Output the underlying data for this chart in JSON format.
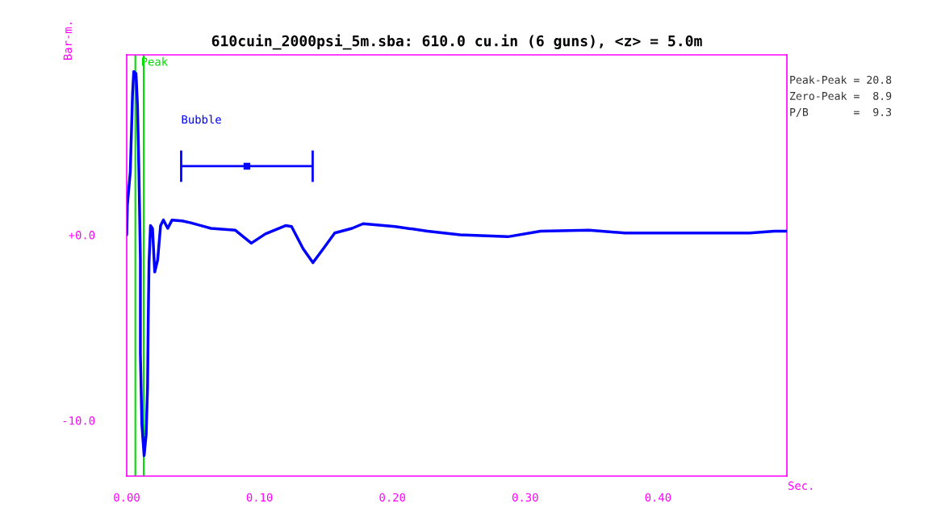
{
  "chart_data": {
    "type": "line",
    "title": "610cuin_2000psi_5m.sba: 610.0 cu.in (6 guns), <z> = 5.0m",
    "xlabel": "Sec.",
    "ylabel": "Bar-m.",
    "xlim": [
      0,
      0.497
    ],
    "ylim": [
      -13.0,
      9.7
    ],
    "xticks": [
      {
        "value": 0,
        "label": "0.00"
      },
      {
        "value": 0.1,
        "label": "0.10"
      },
      {
        "value": 0.2,
        "label": "0.20"
      },
      {
        "value": 0.3,
        "label": "0.30"
      },
      {
        "value": 0.4,
        "label": "0.40"
      }
    ],
    "yticks": [
      {
        "value": 0,
        "label": "+0.0"
      },
      {
        "value": -10,
        "label": "-10.0"
      }
    ],
    "grid": false,
    "legend": false,
    "series": [
      {
        "color": "#0000ff",
        "x": [
          0,
          0.0005,
          0.0027,
          0.0044,
          0.0053,
          0.007,
          0.0081,
          0.0092,
          0.0103,
          0.0103,
          0.0114,
          0.0131,
          0.0146,
          0.0157,
          0.0162,
          0.0168,
          0.0179,
          0.0194,
          0.0211,
          0.0233,
          0.0255,
          0.0276,
          0.0309,
          0.0341,
          0.0417,
          0.0482,
          0.0634,
          0.0818,
          0.0938,
          0.1044,
          0.1196,
          0.1241,
          0.1328,
          0.1402,
          0.148,
          0.1566,
          0.1696,
          0.178,
          0.202,
          0.2265,
          0.251,
          0.287,
          0.3115,
          0.348,
          0.375,
          0.469,
          0.4875,
          0.497
        ],
        "values": [
          0,
          1.6,
          3.4,
          7.6,
          8.8,
          8.7,
          7.0,
          3.4,
          -1.35,
          -6.4,
          -10.2,
          -11.9,
          -10.8,
          -8.2,
          -4.6,
          -1.5,
          0.5,
          0.35,
          -2.0,
          -1.35,
          0.5,
          0.8,
          0.35,
          0.8,
          0.75,
          0.65,
          0.35,
          0.25,
          -0.45,
          0.05,
          0.5,
          0.45,
          -0.75,
          -1.5,
          -0.75,
          0.1,
          0.35,
          0.6,
          0.45,
          0.2,
          0.0,
          -0.1,
          0.2,
          0.25,
          0.1,
          0.1,
          0.2,
          0.2
        ]
      },
      {
        "type": "scatter",
        "color": "#0000ff",
        "marker": "square",
        "x": [
          0.0905
        ],
        "values": [
          3.7
        ],
        "xerrors": [
          0.0495
        ]
      }
    ],
    "ref_lines": [
      {
        "axis": "x",
        "value": 0.0065,
        "label": "Peak",
        "color": "#00dd00"
      },
      {
        "axis": "x",
        "value": 0.0128,
        "label": null,
        "color": "#00dd00"
      }
    ],
    "annotations": [
      "Bubble",
      "Peak-Peak = 20.8",
      "Zero-Peak =  8.9",
      "P/B       =  9.3"
    ]
  }
}
